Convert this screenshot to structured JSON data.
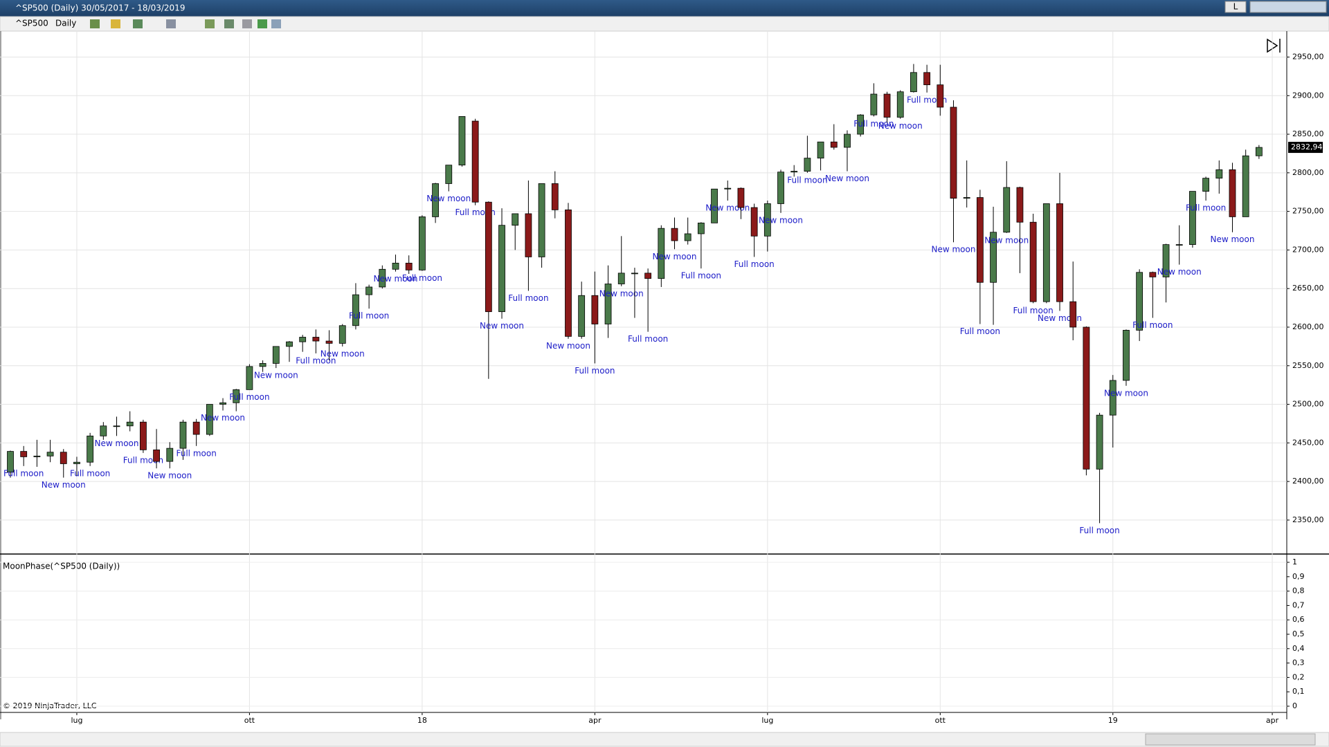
{
  "chart_data": {
    "type": "candlestick",
    "window_title": "^SP500 (Daily)  30/05/2017 - 18/03/2019",
    "window_button": "L",
    "symbol": "^SP500",
    "interval": "Daily",
    "categories": [
      null,
      null,
      null,
      null,
      null,
      "lug",
      null,
      null,
      null,
      null,
      null,
      null,
      null,
      null,
      null,
      null,
      null,
      null,
      "ott",
      null,
      null,
      null,
      null,
      null,
      null,
      null,
      null,
      null,
      null,
      null,
      null,
      "18",
      null,
      null,
      null,
      null,
      null,
      null,
      null,
      null,
      null,
      null,
      null,
      null,
      "apr",
      null,
      null,
      null,
      null,
      null,
      null,
      null,
      null,
      null,
      null,
      null,
      null,
      "lug",
      null,
      null,
      null,
      null,
      null,
      null,
      null,
      null,
      null,
      null,
      null,
      null,
      "ott",
      null,
      null,
      null,
      null,
      null,
      null,
      null,
      null,
      null,
      null,
      null,
      null,
      "19",
      null,
      null,
      null,
      null,
      null,
      null,
      null,
      null,
      null,
      null,
      null,
      "apr"
    ],
    "open": [
      2412,
      2439,
      2432,
      2433,
      2438,
      2423,
      2425,
      2459,
      2472,
      2472,
      2477,
      2441,
      2426,
      2443,
      2477,
      2461,
      2500,
      2502,
      2519,
      2549,
      2553,
      2575,
      2581,
      2587,
      2582,
      2579,
      2602,
      2642,
      2652,
      2675,
      2683,
      2674,
      2743,
      2786,
      2810,
      2867,
      2762,
      2620,
      2732,
      2747,
      2691,
      2786,
      2752,
      2588,
      2641,
      2604,
      2656,
      2670,
      2670,
      2663,
      2728,
      2712,
      2721,
      2735,
      2779,
      2780,
      2755,
      2718,
      2760,
      2801,
      2802,
      2819,
      2840,
      2833,
      2850,
      2875,
      2902,
      2872,
      2905,
      2930,
      2914,
      2885,
      2767,
      2768,
      2658,
      2723,
      2781,
      2736,
      2633,
      2760,
      2633,
      2600,
      2416,
      2486,
      2531,
      2596,
      2671,
      2665,
      2707,
      2707,
      2776,
      2793,
      2804,
      2743,
      2822,
      null
    ],
    "high": [
      2440,
      2446,
      2454,
      2454,
      2442,
      2432,
      2463,
      2477,
      2484,
      2491,
      2480,
      2468,
      2451,
      2480,
      2481,
      2500,
      2508,
      2520,
      2552,
      2557,
      2575,
      2582,
      2590,
      2597,
      2596,
      2604,
      2657,
      2655,
      2680,
      2694,
      2693,
      2745,
      2787,
      2810,
      2873,
      2870,
      2763,
      2754,
      2747,
      2790,
      2786,
      2802,
      2761,
      2659,
      2672,
      2680,
      2718,
      2677,
      2676,
      2732,
      2742,
      2742,
      2736,
      2779,
      2790,
      2781,
      2760,
      2764,
      2804,
      2810,
      2848,
      2840,
      2863,
      2855,
      2876,
      2916,
      2905,
      2907,
      2941,
      2940,
      2940,
      2894,
      2816,
      2778,
      2756,
      2815,
      2782,
      2747,
      2760,
      2800,
      2685,
      2601,
      2489,
      2538,
      2597,
      2675,
      2672,
      2708,
      2732,
      2776,
      2795,
      2816,
      2813,
      2830,
      2836,
      null
    ],
    "low": [
      2405,
      2420,
      2419,
      2425,
      2405,
      2407,
      2420,
      2454,
      2459,
      2465,
      2437,
      2417,
      2417,
      2428,
      2446,
      2459,
      2492,
      2491,
      2519,
      2542,
      2547,
      2555,
      2568,
      2566,
      2557,
      2575,
      2597,
      2624,
      2650,
      2672,
      2669,
      2673,
      2735,
      2776,
      2808,
      2758,
      2533,
      2611,
      2700,
      2647,
      2677,
      2741,
      2585,
      2585,
      2553,
      2586,
      2653,
      2612,
      2594,
      2652,
      2701,
      2707,
      2676,
      2735,
      2764,
      2740,
      2691,
      2698,
      2748,
      2795,
      2800,
      2803,
      2830,
      2802,
      2847,
      2873,
      2865,
      2870,
      2904,
      2904,
      2874,
      2710,
      2755,
      2604,
      2603,
      2722,
      2670,
      2631,
      2631,
      2621,
      2583,
      2408,
      2346,
      2444,
      2524,
      2582,
      2612,
      2632,
      2681,
      2703,
      2764,
      2773,
      2723,
      2743,
      2818,
      null
    ],
    "close": [
      2439,
      2432,
      2433,
      2438,
      2423,
      2425,
      2459,
      2472,
      2472,
      2477,
      2441,
      2426,
      2443,
      2477,
      2461,
      2500,
      2502,
      2519,
      2549,
      2553,
      2575,
      2581,
      2587,
      2582,
      2579,
      2602,
      2642,
      2652,
      2675,
      2683,
      2674,
      2743,
      2786,
      2810,
      2873,
      2762,
      2620,
      2732,
      2747,
      2691,
      2786,
      2752,
      2588,
      2641,
      2604,
      2656,
      2670,
      2670,
      2663,
      2728,
      2712,
      2721,
      2735,
      2779,
      2780,
      2755,
      2718,
      2760,
      2801,
      2802,
      2819,
      2840,
      2833,
      2850,
      2875,
      2902,
      2872,
      2905,
      2930,
      2914,
      2885,
      2767,
      2768,
      2658,
      2723,
      2781,
      2736,
      2633,
      2760,
      2633,
      2600,
      2416,
      2486,
      2531,
      2596,
      2671,
      2665,
      2707,
      2707,
      2776,
      2793,
      2804,
      2743,
      2822,
      2832.94,
      null
    ],
    "moon": [
      null,
      "Full moon",
      null,
      null,
      "New moon",
      null,
      "Full moon",
      null,
      "New moon",
      null,
      "Full moon",
      null,
      "New moon",
      null,
      "Full moon",
      null,
      "New moon",
      null,
      "Full moon",
      null,
      "New moon",
      null,
      null,
      "Full moon",
      null,
      "New moon",
      null,
      "Full moon",
      null,
      "New moon",
      null,
      "Full moon",
      null,
      "New moon",
      null,
      "Full moon",
      null,
      "New moon",
      null,
      "Full moon",
      null,
      null,
      "New moon",
      null,
      "Full moon",
      null,
      "New moon",
      null,
      "Full moon",
      null,
      "New moon",
      null,
      "Full moon",
      null,
      "New moon",
      null,
      "Full moon",
      null,
      "New moon",
      null,
      "Full moon",
      null,
      null,
      "New moon",
      null,
      "Full moon",
      null,
      "New moon",
      null,
      "Full moon",
      null,
      "New moon",
      null,
      "Full moon",
      null,
      "New moon",
      null,
      "Full moon",
      null,
      "New moon",
      null,
      null,
      "Full moon",
      null,
      "New moon",
      null,
      "Full moon",
      null,
      "New moon",
      null,
      "Full moon",
      null,
      "New moon",
      null,
      null,
      null
    ],
    "last_label": "2832,94",
    "up_color": "#4a7a4a",
    "down_color": "#8b1a1a",
    "moon_color": "#1c1cc8",
    "grid": true,
    "ylim": [
      2306,
      2980
    ],
    "yticks": [
      {
        "value": 2350,
        "label": "2350,00"
      },
      {
        "value": 2400,
        "label": "2400,00"
      },
      {
        "value": 2450,
        "label": "2450,00"
      },
      {
        "value": 2500,
        "label": "2500,00"
      },
      {
        "value": 2550,
        "label": "2550,00"
      },
      {
        "value": 2600,
        "label": "2600,00"
      },
      {
        "value": 2650,
        "label": "2650,00"
      },
      {
        "value": 2700,
        "label": "2700,00"
      },
      {
        "value": 2750,
        "label": "2750,00"
      },
      {
        "value": 2800,
        "label": "2800,00"
      },
      {
        "value": 2850,
        "label": "2850,00"
      },
      {
        "value": 2900,
        "label": "2900,00"
      },
      {
        "value": 2950,
        "label": "2950,00"
      }
    ],
    "indicator": {
      "title": "MoonPhase(^SP500 (Daily))",
      "ylim": [
        0,
        1
      ],
      "yticks": [
        0,
        {
          "value": 0.1,
          "label": "0,1"
        },
        {
          "value": 0.2,
          "label": "0,2"
        },
        {
          "value": 0.3,
          "label": "0,3"
        },
        {
          "value": 0.4,
          "label": "0,4"
        },
        {
          "value": 0.5,
          "label": "0,5"
        },
        {
          "value": 0.6,
          "label": "0,6"
        },
        {
          "value": 0.7,
          "label": "0,7"
        },
        {
          "value": 0.8,
          "label": "0,8"
        },
        {
          "value": 0.9,
          "label": "0,9"
        },
        1
      ]
    },
    "copyright": "© 2019 NinjaTrader, LLC"
  }
}
